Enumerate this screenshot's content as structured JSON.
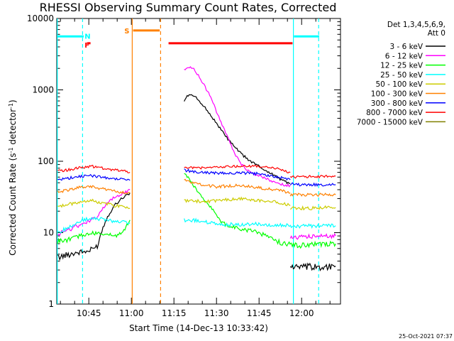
{
  "chart_data": {
    "type": "line",
    "title": "RHESSI Observing Summary Count Rates, Corrected",
    "xlabel": "Start Time (14-Dec-13 10:33:42)",
    "ylabel_main": "Corrected Count Rate (s",
    "ylabel_sup": "-1",
    "ylabel_tail": " detector",
    "ylabel_end": ")",
    "timestamp": "25-Oct-2021 07:37",
    "y_scale": "log",
    "ylim": [
      1,
      10000
    ],
    "x_tick_labels": [
      "10:45",
      "11:00",
      "11:15",
      "11:30",
      "11:45",
      "12:00"
    ],
    "x_tick_minutes": [
      645,
      660,
      675,
      690,
      705,
      720
    ],
    "xlim_minutes": [
      633.7,
      733.7
    ],
    "y_tick_labels": [
      "1",
      "10",
      "100",
      "1000",
      "10000"
    ],
    "y_tick_values": [
      1,
      10,
      100,
      1000,
      10000
    ],
    "legend_header": [
      "Det 1,3,4,5,6,9,",
      "Att 0"
    ],
    "legend_position": "right",
    "series": [
      {
        "name": "3 - 6 keV",
        "color": "#000000",
        "segments": [
          [
            [
              634,
              4.5
            ],
            [
              640,
              5.2
            ],
            [
              645,
              5.5
            ],
            [
              648,
              6.5
            ],
            [
              650,
              12
            ],
            [
              652,
              18
            ],
            [
              654,
              24
            ],
            [
              656,
              29
            ],
            [
              658,
              33
            ],
            [
              659.5,
              36
            ]
          ],
          [
            [
              678.6,
              700
            ],
            [
              680,
              850
            ],
            [
              682,
              820
            ],
            [
              684,
              700
            ],
            [
              686,
              560
            ],
            [
              688,
              440
            ],
            [
              690,
              340
            ],
            [
              692,
              262
            ],
            [
              694,
              205
            ],
            [
              696,
              165
            ],
            [
              698,
              135
            ],
            [
              700,
              115
            ],
            [
              702,
              100
            ],
            [
              704,
              90
            ],
            [
              706,
              80
            ],
            [
              708,
              72
            ],
            [
              710,
              65
            ],
            [
              712,
              58
            ],
            [
              714,
              52
            ],
            [
              716,
              49
            ]
          ],
          [
            [
              716,
              3.4
            ],
            [
              720,
              3.2
            ],
            [
              724,
              3.3
            ],
            [
              728,
              3.3
            ],
            [
              732,
              3.4
            ]
          ]
        ]
      },
      {
        "name": "6 - 12 keV",
        "color": "#ff00ff",
        "segments": [
          [
            [
              634,
              9.5
            ],
            [
              638,
              11
            ],
            [
              642,
              13
            ],
            [
              646,
              15
            ],
            [
              648,
              17
            ],
            [
              650,
              22
            ],
            [
              652,
              27
            ],
            [
              654,
              31
            ],
            [
              656,
              34
            ],
            [
              658,
              37
            ],
            [
              659.5,
              40
            ]
          ],
          [
            [
              678.6,
              1900
            ],
            [
              680,
              2100
            ],
            [
              682,
              1950
            ],
            [
              684,
              1500
            ],
            [
              686,
              1100
            ],
            [
              688,
              780
            ],
            [
              690,
              500
            ],
            [
              692,
              320
            ],
            [
              694,
              210
            ],
            [
              696,
              140
            ],
            [
              698,
              100
            ],
            [
              700,
              80
            ],
            [
              702,
              70
            ],
            [
              704,
              64
            ],
            [
              706,
              60
            ],
            [
              708,
              56
            ],
            [
              710,
              52
            ],
            [
              712,
              49
            ],
            [
              714,
              47
            ],
            [
              716,
              46
            ]
          ],
          [
            [
              716,
              8.6
            ],
            [
              720,
              8.7
            ],
            [
              724,
              8.8
            ],
            [
              728,
              9
            ],
            [
              732,
              9
            ]
          ]
        ]
      },
      {
        "name": "12 - 25 keV",
        "color": "#00ff00",
        "segments": [
          [
            [
              634,
              7.5
            ],
            [
              638,
              8
            ],
            [
              642,
              9
            ],
            [
              646,
              9.8
            ],
            [
              650,
              9.5
            ],
            [
              654,
              9
            ],
            [
              657,
              10
            ],
            [
              659.5,
              15
            ]
          ],
          [
            [
              678.6,
              68
            ],
            [
              680,
              60
            ],
            [
              682,
              45
            ],
            [
              684,
              35
            ],
            [
              686,
              28
            ],
            [
              688,
              23
            ],
            [
              690,
              17
            ],
            [
              692,
              14
            ],
            [
              694,
              12.5
            ],
            [
              696,
              12
            ],
            [
              698,
              11.5
            ],
            [
              700,
              11
            ],
            [
              702,
              10.8
            ],
            [
              704,
              10.2
            ],
            [
              706,
              9.5
            ],
            [
              708,
              8.8
            ],
            [
              710,
              8
            ],
            [
              712,
              7.4
            ],
            [
              714,
              7
            ],
            [
              716,
              6.8
            ]
          ],
          [
            [
              716,
              6.8
            ],
            [
              720,
              6.6
            ],
            [
              724,
              6.8
            ],
            [
              728,
              7
            ],
            [
              732,
              7
            ]
          ]
        ]
      },
      {
        "name": "25 - 50 keV",
        "color": "#00ffff",
        "segments": [
          [
            [
              634,
              10
            ],
            [
              638,
              12
            ],
            [
              642,
              14.5
            ],
            [
              646,
              16
            ],
            [
              650,
              15.5
            ],
            [
              654,
              14.5
            ],
            [
              657,
              14
            ],
            [
              659.5,
              13.5
            ]
          ],
          [
            [
              678.6,
              15
            ],
            [
              682,
              15
            ],
            [
              686,
              14
            ],
            [
              690,
              13.5
            ],
            [
              694,
              13
            ],
            [
              698,
              13
            ],
            [
              702,
              13.2
            ],
            [
              706,
              13
            ],
            [
              710,
              12.8
            ],
            [
              714,
              12.6
            ],
            [
              716,
              12.5
            ]
          ],
          [
            [
              716,
              12.5
            ],
            [
              720,
              12.3
            ],
            [
              724,
              12.5
            ],
            [
              728,
              12.5
            ],
            [
              732,
              12.5
            ]
          ]
        ]
      },
      {
        "name": "50 - 100 keV",
        "color": "#cccc00",
        "segments": [
          [
            [
              634,
              23
            ],
            [
              638,
              25
            ],
            [
              642,
              27
            ],
            [
              646,
              28
            ],
            [
              650,
              26
            ],
            [
              654,
              24
            ],
            [
              657,
              23
            ],
            [
              659.5,
              22
            ]
          ],
          [
            [
              678.6,
              28
            ],
            [
              682,
              28
            ],
            [
              686,
              27
            ],
            [
              690,
              28
            ],
            [
              694,
              29
            ],
            [
              698,
              30
            ],
            [
              702,
              29
            ],
            [
              706,
              28
            ],
            [
              710,
              27
            ],
            [
              714,
              25
            ],
            [
              716,
              24
            ]
          ],
          [
            [
              716,
              22
            ],
            [
              720,
              22
            ],
            [
              724,
              22
            ],
            [
              728,
              22.5
            ],
            [
              732,
              22.5
            ]
          ]
        ]
      },
      {
        "name": "100 - 300 keV",
        "color": "#ff8000",
        "segments": [
          [
            [
              634,
              37
            ],
            [
              638,
              40
            ],
            [
              642,
              43
            ],
            [
              646,
              44
            ],
            [
              650,
              41
            ],
            [
              654,
              38
            ],
            [
              657,
              37
            ],
            [
              659.5,
              36
            ]
          ],
          [
            [
              678.6,
              55
            ],
            [
              682,
              50
            ],
            [
              686,
              46
            ],
            [
              690,
              44
            ],
            [
              694,
              45
            ],
            [
              698,
              46
            ],
            [
              702,
              44
            ],
            [
              706,
              42
            ],
            [
              710,
              40
            ],
            [
              714,
              38
            ],
            [
              716,
              36
            ]
          ],
          [
            [
              716,
              34
            ],
            [
              720,
              34
            ],
            [
              724,
              34
            ],
            [
              728,
              34
            ],
            [
              732,
              34
            ]
          ]
        ]
      },
      {
        "name": "300 - 800 keV",
        "color": "#0000ff",
        "segments": [
          [
            [
              634,
              55
            ],
            [
              638,
              58
            ],
            [
              642,
              62
            ],
            [
              646,
              63
            ],
            [
              650,
              60
            ],
            [
              654,
              57
            ],
            [
              657,
              55
            ],
            [
              659.5,
              54
            ]
          ],
          [
            [
              678.6,
              75
            ],
            [
              682,
              72
            ],
            [
              686,
              70
            ],
            [
              690,
              68
            ],
            [
              694,
              68
            ],
            [
              698,
              69
            ],
            [
              702,
              68
            ],
            [
              706,
              66
            ],
            [
              710,
              62
            ],
            [
              714,
              58
            ],
            [
              716,
              55
            ]
          ],
          [
            [
              716,
              48
            ],
            [
              720,
              47
            ],
            [
              724,
              47
            ],
            [
              728,
              47
            ],
            [
              732,
              47
            ]
          ]
        ]
      },
      {
        "name": "800 - 7000 keV",
        "color": "#ff0000",
        "segments": [
          [
            [
              634,
              72
            ],
            [
              638,
              76
            ],
            [
              642,
              82
            ],
            [
              646,
              85
            ],
            [
              650,
              80
            ],
            [
              654,
              76
            ],
            [
              657,
              73
            ],
            [
              659.5,
              70
            ]
          ],
          [
            [
              678.6,
              82
            ],
            [
              682,
              81
            ],
            [
              686,
              80
            ],
            [
              690,
              82
            ],
            [
              694,
              84
            ],
            [
              698,
              86
            ],
            [
              702,
              86
            ],
            [
              706,
              84
            ],
            [
              710,
              80
            ],
            [
              714,
              74
            ],
            [
              716,
              70
            ]
          ],
          [
            [
              716,
              60
            ],
            [
              720,
              60
            ],
            [
              724,
              61
            ],
            [
              728,
              61
            ],
            [
              732,
              62
            ]
          ]
        ]
      },
      {
        "name": "7000 - 15000 keV",
        "color": "#808000",
        "segments": []
      }
    ],
    "vertical_lines": [
      {
        "x": 633.9,
        "color": "#00ffff",
        "style": "solid"
      },
      {
        "x": 642.8,
        "color": "#00ffff",
        "style": "dashed"
      },
      {
        "x": 660.3,
        "color": "#ff8000",
        "style": "solid"
      },
      {
        "x": 670.3,
        "color": "#ff8000",
        "style": "dashed"
      },
      {
        "x": 717.1,
        "color": "#00ffff",
        "style": "solid"
      },
      {
        "x": 726.0,
        "color": "#00ffff",
        "style": "dashed"
      }
    ],
    "flag_bars": [
      {
        "x0": 634,
        "x1": 643.2,
        "y": 5600,
        "color": "#00ffff"
      },
      {
        "x0": 644.5,
        "x1": 645.6,
        "y": 4500,
        "color": "#ff0000"
      },
      {
        "x0": 660.6,
        "x1": 670.0,
        "y": 6800,
        "color": "#ff8000"
      },
      {
        "x0": 673.1,
        "x1": 716.8,
        "y": 4500,
        "color": "#ff0000"
      },
      {
        "x0": 717.3,
        "x1": 726.2,
        "y": 5600,
        "color": "#00ffff"
      }
    ],
    "flag_labels": [
      {
        "text": "N",
        "x": 643.5,
        "y": 5700,
        "color": "#00ffff"
      },
      {
        "text": "F",
        "x": 643.5,
        "y": 4300,
        "color": "#ff0000"
      },
      {
        "text": "S",
        "x": 657.5,
        "y": 6800,
        "color": "#ff8000"
      }
    ]
  }
}
